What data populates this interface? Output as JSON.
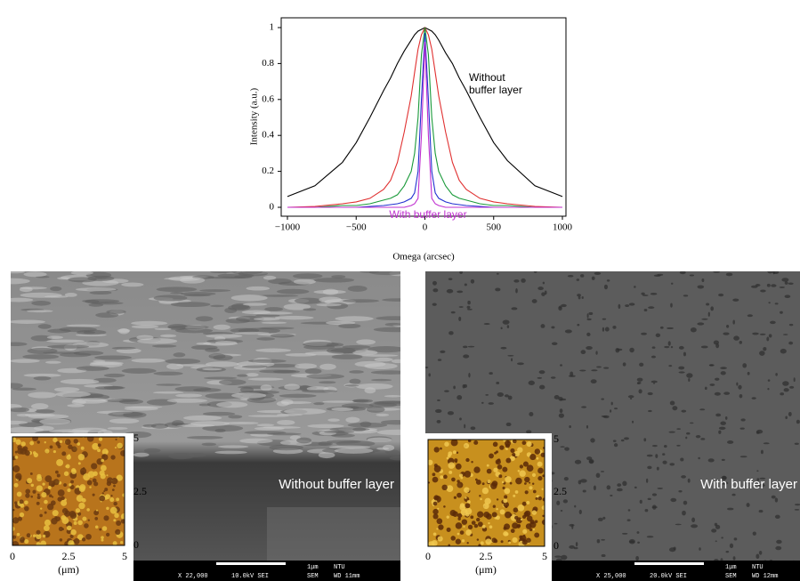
{
  "chart_data": {
    "type": "line",
    "x": [
      -1000,
      -800,
      -600,
      -500,
      -400,
      -300,
      -250,
      -200,
      -150,
      -100,
      -75,
      -50,
      -25,
      0,
      25,
      50,
      75,
      100,
      150,
      200,
      250,
      300,
      400,
      500,
      600,
      800,
      1000
    ],
    "series": [
      {
        "color": "#000000",
        "values": [
          0.06,
          0.12,
          0.25,
          0.36,
          0.5,
          0.65,
          0.72,
          0.8,
          0.87,
          0.93,
          0.96,
          0.98,
          0.99,
          1,
          0.99,
          0.98,
          0.96,
          0.93,
          0.86,
          0.8,
          0.72,
          0.65,
          0.5,
          0.36,
          0.26,
          0.12,
          0.06
        ]
      },
      {
        "color": "#e03030",
        "values": [
          0,
          0.005,
          0.02,
          0.03,
          0.05,
          0.1,
          0.15,
          0.25,
          0.42,
          0.62,
          0.75,
          0.88,
          0.96,
          1,
          0.96,
          0.88,
          0.75,
          0.62,
          0.42,
          0.25,
          0.15,
          0.1,
          0.05,
          0.03,
          0.02,
          0.005,
          0
        ]
      },
      {
        "color": "#1a9a3a",
        "values": [
          0,
          0,
          0.01,
          0.01,
          0.02,
          0.04,
          0.05,
          0.07,
          0.12,
          0.2,
          0.3,
          0.5,
          0.85,
          1,
          0.85,
          0.5,
          0.3,
          0.2,
          0.12,
          0.07,
          0.05,
          0.04,
          0.02,
          0.01,
          0.01,
          0,
          0
        ]
      },
      {
        "color": "#2030d0",
        "values": [
          0,
          0,
          0,
          0,
          0.005,
          0.01,
          0.015,
          0.02,
          0.03,
          0.05,
          0.08,
          0.2,
          0.6,
          0.97,
          0.6,
          0.2,
          0.08,
          0.05,
          0.03,
          0.02,
          0.015,
          0.01,
          0.005,
          0,
          0,
          0,
          0
        ]
      },
      {
        "color": "#c030d0",
        "values": [
          0,
          0,
          0,
          0,
          0,
          0,
          0,
          0,
          0,
          0.01,
          0.02,
          0.05,
          0.4,
          0.92,
          0.4,
          0.05,
          0.02,
          0.01,
          0,
          0,
          0,
          0,
          0,
          0,
          0,
          0,
          0
        ]
      }
    ],
    "xlim": [
      -1000,
      1000
    ],
    "ylim": [
      0,
      1
    ],
    "xticks": [
      {
        "value": -1000,
        "label": "−1000"
      },
      {
        "value": -500,
        "label": "−500"
      },
      0,
      500,
      1000
    ],
    "yticks": [
      0,
      0.2,
      0.4,
      0.6,
      0.8,
      1
    ],
    "x_label": "Omega (arcsec)",
    "y_label": "Intensity (a.u.)",
    "annotations": [
      {
        "lines": [
          "Without",
          "buffer layer"
        ],
        "color": "#000000"
      },
      {
        "lines": [
          "With buffer layer"
        ],
        "color": "#c030d0"
      }
    ]
  },
  "panels": [
    {
      "label": "Without buffer layer",
      "info": [
        "X 22,000",
        "10.0kV SEI",
        "1μm",
        "NTU",
        "SEM",
        "WD 11mm"
      ],
      "inset_ticks": [
        "0",
        "2.5",
        "5"
      ],
      "inset_unit": "(μm)"
    },
    {
      "label": "With buffer layer",
      "info": [
        "X 25,000",
        "20.0kV SEI",
        "1μm",
        "NTU",
        "SEM",
        "WD 12mm"
      ],
      "inset_ticks": [
        "0",
        "2.5",
        "5"
      ],
      "inset_unit": "(μm)"
    }
  ]
}
